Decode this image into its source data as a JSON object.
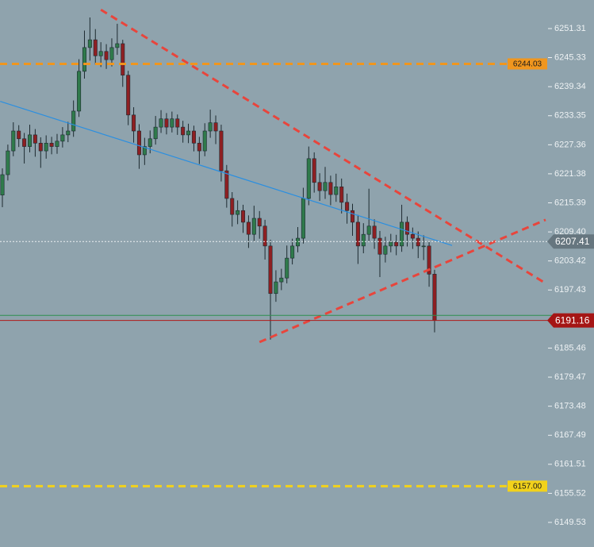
{
  "chart_data": {
    "type": "candlestick",
    "up_color": "#2f7a4b",
    "down_color": "#8e1f22",
    "background": "#8fa3ad",
    "xlim": [
      -0.435,
      99.3
    ],
    "ylim": [
      6144.46,
      6257.2
    ],
    "yticks": [
      6251.31,
      6245.33,
      6239.34,
      6233.35,
      6227.36,
      6221.38,
      6215.39,
      {
        "value": 6209.4,
        "label": "6209.40"
      },
      6203.42,
      6197.43,
      6185.46,
      6179.47,
      6173.48,
      6167.49,
      6161.51,
      6155.52,
      6149.53
    ],
    "open": [
      6217.0,
      6221.2,
      6226.1,
      6230.2,
      6228.6,
      6227.0,
      6229.4,
      6227.7,
      6226.1,
      6227.7,
      6227.0,
      6228.1,
      6229.4,
      6230.2,
      6234.3,
      6242.5,
      6247.4,
      6249.0,
      6245.7,
      6246.6,
      6244.9,
      6247.4,
      6248.2,
      6241.7,
      6233.5,
      6230.2,
      6225.3,
      6227.0,
      6228.6,
      6231.0,
      6232.7,
      6231.0,
      6232.7,
      6231.0,
      6229.4,
      6230.2,
      6227.7,
      6226.1,
      6230.2,
      6231.9,
      6230.2,
      6222.0,
      6216.3,
      6213.0,
      6213.8,
      6211.4,
      6208.9,
      6212.2,
      6210.6,
      6206.5,
      6196.7,
      6199.1,
      6199.9,
      6204.0,
      6206.5,
      6208.1,
      6216.3,
      6224.5,
      6219.6,
      6217.9,
      6219.6,
      6217.1,
      6218.7,
      6215.5,
      6213.8,
      6211.4,
      6206.5,
      6208.9,
      6210.6,
      6208.1,
      6204.8,
      6206.5,
      6207.3,
      6206.5,
      6211.4,
      6208.9,
      6208.1,
      6206.5,
      6206.5,
      6200.7
    ],
    "high": [
      6222.5,
      6227.4,
      6232.0,
      6231.4,
      6229.8,
      6231.5,
      6230.6,
      6228.9,
      6229.3,
      6229.0,
      6229.6,
      6231.0,
      6232.1,
      6236.5,
      6245.0,
      6250.9,
      6253.6,
      6251.2,
      6248.5,
      6248.1,
      6249.3,
      6252.3,
      6249.0,
      6242.6,
      6235.1,
      6231.6,
      6228.8,
      6230.3,
      6233.3,
      6234.5,
      6233.9,
      6234.2,
      6233.6,
      6232.3,
      6231.7,
      6231.3,
      6229.0,
      6231.8,
      6234.6,
      6233.4,
      6231.5,
      6223.2,
      6217.6,
      6215.9,
      6215.0,
      6212.8,
      6214.8,
      6213.7,
      6211.9,
      6207.8,
      6201.5,
      6201.8,
      6206.6,
      6208.0,
      6210.4,
      6218.5,
      6227.0,
      6225.8,
      6221.5,
      6222.8,
      6221.0,
      6221.4,
      6220.4,
      6217.3,
      6215.2,
      6212.9,
      6211.2,
      6218.3,
      6212.0,
      6209.6,
      6208.4,
      6209.0,
      6208.8,
      6215.0,
      6212.6,
      6210.3,
      6209.5,
      6208.7,
      6207.4,
      6201.6
    ],
    "low": [
      6214.5,
      6220.0,
      6225.0,
      6226.9,
      6223.5,
      6225.8,
      6224.9,
      6222.6,
      6224.5,
      6225.4,
      6225.5,
      6226.8,
      6227.9,
      6229.0,
      6233.1,
      6241.0,
      6244.7,
      6243.9,
      6243.4,
      6243.0,
      6243.5,
      6245.9,
      6239.3,
      6231.4,
      6227.8,
      6222.4,
      6223.2,
      6225.6,
      6227.4,
      6229.8,
      6229.5,
      6229.9,
      6229.4,
      6227.8,
      6227.7,
      6226.0,
      6223.4,
      6225.0,
      6228.8,
      6227.5,
      6219.8,
      6214.4,
      6210.5,
      6211.0,
      6209.2,
      6206.1,
      6207.5,
      6208.0,
      6203.7,
      6187.2,
      6195.0,
      6197.4,
      6198.8,
      6202.7,
      6205.2,
      6207.0,
      6214.9,
      6217.5,
      6215.8,
      6216.2,
      6214.9,
      6215.6,
      6213.2,
      6211.1,
      6208.6,
      6202.8,
      6205.0,
      6207.4,
      6205.9,
      6200.1,
      6203.1,
      6205.2,
      6204.6,
      6205.3,
      6206.4,
      6205.9,
      6204.0,
      6203.6,
      6198.1,
      6188.7
    ],
    "close": [
      6221.2,
      6226.1,
      6230.2,
      6228.6,
      6227.0,
      6229.4,
      6227.7,
      6226.1,
      6227.7,
      6227.0,
      6228.1,
      6229.4,
      6230.2,
      6234.3,
      6242.5,
      6247.4,
      6249.0,
      6245.7,
      6246.6,
      6244.9,
      6247.4,
      6248.2,
      6241.7,
      6233.5,
      6230.2,
      6225.3,
      6227.0,
      6228.6,
      6231.0,
      6232.7,
      6231.0,
      6232.7,
      6231.0,
      6229.4,
      6230.2,
      6227.7,
      6226.1,
      6230.2,
      6231.9,
      6230.2,
      6222.0,
      6216.3,
      6213.0,
      6213.8,
      6211.4,
      6208.9,
      6212.2,
      6210.6,
      6206.5,
      6196.7,
      6199.1,
      6199.9,
      6204.0,
      6206.5,
      6208.1,
      6216.3,
      6224.5,
      6219.6,
      6217.9,
      6219.6,
      6217.1,
      6218.7,
      6215.5,
      6213.8,
      6211.4,
      6206.5,
      6208.9,
      6210.6,
      6208.1,
      6204.8,
      6206.5,
      6207.3,
      6206.5,
      6211.4,
      6208.9,
      6208.1,
      6206.5,
      6206.5,
      6200.7,
      6191.2
    ],
    "lines": [
      {
        "x": [
          18.0,
          99.3
        ],
        "y": [
          6255.2,
          6198.8
        ],
        "color": "#e8453c",
        "style": "dashed"
      },
      {
        "x": [
          47.0,
          99.3
        ],
        "y": [
          6186.7,
          6211.9
        ],
        "color": "#e8453c",
        "style": "dashed"
      },
      {
        "x": [
          -0.4,
          82.2
        ],
        "y": [
          6236.3,
          6206.6
        ],
        "color": "#2b8fe0",
        "style": "solid"
      }
    ],
    "levels": [
      {
        "value": 6244.03,
        "label": "6244.03",
        "color": "#f0961e",
        "style": "dashed",
        "badge": "plot"
      },
      {
        "value": 6157.0,
        "label": "6157.00",
        "color": "#f2d21b",
        "style": "dashed",
        "badge": "plot"
      },
      {
        "value": 6207.41,
        "label": "6207.41",
        "color": "#eef2f4",
        "style": "dotted",
        "badge": "axis",
        "badge_color": "#66767f"
      },
      {
        "value": 6192.2,
        "color": "#2f8f4f",
        "style": "solid"
      },
      {
        "value": 6191.16,
        "label": "6191.16",
        "color": "#b01818",
        "style": "solid",
        "badge": "axis",
        "badge_color": "#a51515"
      }
    ]
  }
}
